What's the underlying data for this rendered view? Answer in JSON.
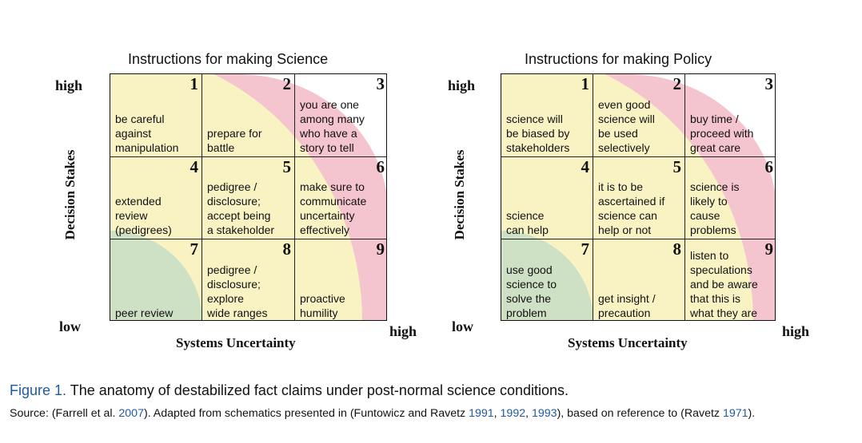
{
  "axes": {
    "y_label": "Decision Stakes",
    "x_label": "Systems Uncertainty",
    "high": "high",
    "low": "low"
  },
  "colors": {
    "red_zone": "#f4c4cf",
    "yellow_zone": "#f9f3c4",
    "green_zone": "#cfe1c4",
    "grid_line": "#222222",
    "link": "#1f5aa0"
  },
  "panels": [
    {
      "title": "Instructions for making Science",
      "cells": [
        {
          "num": "1",
          "text": "be careful\nagainst\nmanipulation"
        },
        {
          "num": "2",
          "text": "prepare for\nbattle"
        },
        {
          "num": "3",
          "text": "you are one\namong many\nwho have a\nstory to tell"
        },
        {
          "num": "4",
          "text": "extended\nreview\n(pedigrees)"
        },
        {
          "num": "5",
          "text": "pedigree /\ndisclosure;\naccept being\na stakeholder"
        },
        {
          "num": "6",
          "text": "make sure to\ncommunicate\nuncertainty\neffectively"
        },
        {
          "num": "7",
          "text": "peer review"
        },
        {
          "num": "8",
          "text": "pedigree /\ndisclosure;\nexplore\nwide ranges"
        },
        {
          "num": "9",
          "text": "proactive\nhumility"
        }
      ]
    },
    {
      "title": "Instructions for making Policy",
      "cells": [
        {
          "num": "1",
          "text": "science will\nbe biased by\nstakeholders"
        },
        {
          "num": "2",
          "text": "even good\nscience will\nbe used\nselectively"
        },
        {
          "num": "3",
          "text": "buy time /\nproceed with\ngreat care"
        },
        {
          "num": "4",
          "text": "science\ncan help"
        },
        {
          "num": "5",
          "text": "it is to be\nascertained if\nscience can\nhelp or not"
        },
        {
          "num": "6",
          "text": "science is\nlikely to\ncause\nproblems"
        },
        {
          "num": "7",
          "text": "use good\nscience to\nsolve the\nproblem"
        },
        {
          "num": "8",
          "text": "get insight /\nprecaution"
        },
        {
          "num": "9",
          "text": "listen to\nspeculations\nand be aware\nthat this is\nwhat they are"
        }
      ]
    }
  ],
  "caption": {
    "figure_label": "Figure 1.",
    "text": " The anatomy of destabilized fact claims under post-normal science conditions."
  },
  "source": {
    "p1": "Source: (Farrell et al. ",
    "y1": "2007",
    "p2": "). Adapted from schematics presented in (Funtowicz and Ravetz ",
    "y2": "1991",
    "p3": ", ",
    "y3": "1992",
    "p4": ", ",
    "y4": "1993",
    "p5": "), based on reference to (Ravetz ",
    "y5": "1971",
    "p6": ")."
  }
}
